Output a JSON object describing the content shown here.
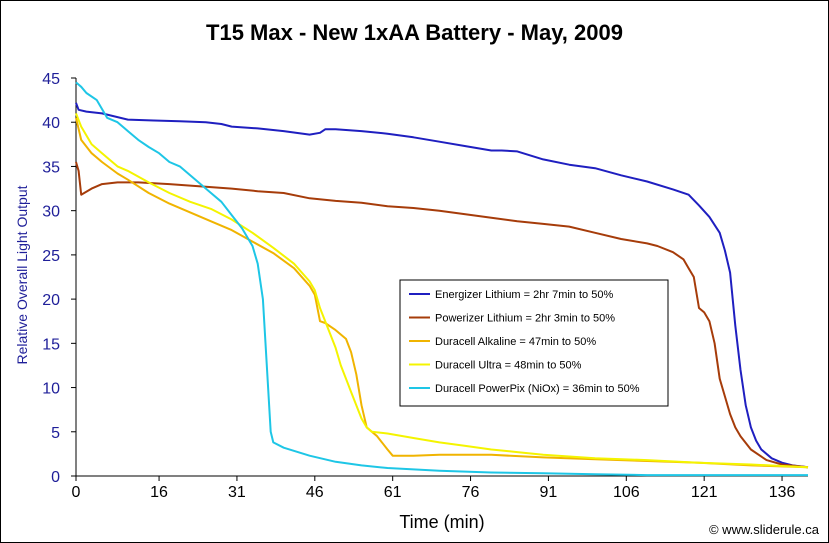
{
  "chart_data": {
    "type": "line",
    "title": "T15 Max - New 1xAA Battery - May, 2009",
    "xlabel": "Time (min)",
    "ylabel": "Relative Overall Light Output",
    "xlim": [
      0,
      141
    ],
    "ylim": [
      0,
      45
    ],
    "xticks": [
      0,
      16,
      31,
      46,
      61,
      76,
      91,
      106,
      121,
      136
    ],
    "yticks": [
      0,
      5,
      10,
      15,
      20,
      25,
      30,
      35,
      40,
      45
    ],
    "grid": false,
    "legend_position": "center-right",
    "credit": "© www.sliderule.ca",
    "series": [
      {
        "name": "Energizer Lithium = 2hr 7min to 50%",
        "color": "#1f1fc0",
        "points": [
          [
            0,
            42.2
          ],
          [
            0.5,
            41.4
          ],
          [
            2,
            41.2
          ],
          [
            5,
            41.0
          ],
          [
            10,
            40.3
          ],
          [
            15,
            40.2
          ],
          [
            20,
            40.1
          ],
          [
            25,
            40.0
          ],
          [
            28,
            39.8
          ],
          [
            30,
            39.5
          ],
          [
            35,
            39.3
          ],
          [
            40,
            39.0
          ],
          [
            45,
            38.6
          ],
          [
            47,
            38.8
          ],
          [
            48,
            39.2
          ],
          [
            50,
            39.2
          ],
          [
            55,
            39.0
          ],
          [
            60,
            38.7
          ],
          [
            65,
            38.3
          ],
          [
            70,
            37.8
          ],
          [
            75,
            37.3
          ],
          [
            80,
            36.8
          ],
          [
            82,
            36.8
          ],
          [
            85,
            36.7
          ],
          [
            90,
            35.8
          ],
          [
            95,
            35.2
          ],
          [
            100,
            34.8
          ],
          [
            105,
            34.0
          ],
          [
            110,
            33.3
          ],
          [
            115,
            32.4
          ],
          [
            118,
            31.8
          ],
          [
            120,
            30.6
          ],
          [
            122,
            29.3
          ],
          [
            124,
            27.5
          ],
          [
            125,
            25.5
          ],
          [
            126,
            23.0
          ],
          [
            127,
            17.0
          ],
          [
            128,
            12.0
          ],
          [
            129,
            8.0
          ],
          [
            130,
            5.5
          ],
          [
            131,
            4.0
          ],
          [
            132,
            3.0
          ],
          [
            134,
            2.0
          ],
          [
            136,
            1.5
          ],
          [
            138,
            1.2
          ],
          [
            141,
            1.0
          ]
        ]
      },
      {
        "name": "Powerizer Lithium = 2hr 3min to 50%",
        "color": "#a63c0a",
        "points": [
          [
            0,
            35.5
          ],
          [
            0.5,
            34.5
          ],
          [
            1,
            31.8
          ],
          [
            3,
            32.5
          ],
          [
            5,
            33.0
          ],
          [
            8,
            33.2
          ],
          [
            12,
            33.2
          ],
          [
            18,
            33.0
          ],
          [
            25,
            32.7
          ],
          [
            30,
            32.5
          ],
          [
            35,
            32.2
          ],
          [
            40,
            32.0
          ],
          [
            45,
            31.4
          ],
          [
            50,
            31.1
          ],
          [
            55,
            30.9
          ],
          [
            60,
            30.5
          ],
          [
            65,
            30.3
          ],
          [
            70,
            30.0
          ],
          [
            75,
            29.6
          ],
          [
            80,
            29.2
          ],
          [
            85,
            28.8
          ],
          [
            90,
            28.5
          ],
          [
            95,
            28.2
          ],
          [
            100,
            27.5
          ],
          [
            105,
            26.8
          ],
          [
            110,
            26.3
          ],
          [
            112,
            26.0
          ],
          [
            115,
            25.3
          ],
          [
            117,
            24.5
          ],
          [
            118,
            23.5
          ],
          [
            119,
            22.5
          ],
          [
            120,
            19.0
          ],
          [
            121,
            18.5
          ],
          [
            122,
            17.5
          ],
          [
            123,
            15.0
          ],
          [
            124,
            11.0
          ],
          [
            125,
            9.0
          ],
          [
            126,
            7.0
          ],
          [
            127,
            5.5
          ],
          [
            128,
            4.5
          ],
          [
            130,
            3.0
          ],
          [
            133,
            1.8
          ],
          [
            136,
            1.3
          ],
          [
            141,
            1.0
          ]
        ]
      },
      {
        "name": "Duracell Alkaline = 47min to 50%",
        "color": "#f0b400",
        "points": [
          [
            0,
            40.5
          ],
          [
            1,
            38.0
          ],
          [
            3,
            36.5
          ],
          [
            5,
            35.5
          ],
          [
            8,
            34.2
          ],
          [
            10,
            33.5
          ],
          [
            14,
            32.0
          ],
          [
            18,
            30.8
          ],
          [
            22,
            29.8
          ],
          [
            26,
            28.8
          ],
          [
            30,
            27.8
          ],
          [
            34,
            26.5
          ],
          [
            38,
            25.2
          ],
          [
            42,
            23.5
          ],
          [
            45,
            21.5
          ],
          [
            46,
            20.5
          ],
          [
            47,
            17.5
          ],
          [
            48,
            17.3
          ],
          [
            50,
            16.5
          ],
          [
            52,
            15.5
          ],
          [
            53,
            14.0
          ],
          [
            54,
            11.5
          ],
          [
            55,
            8.0
          ],
          [
            56,
            5.5
          ],
          [
            58,
            4.5
          ],
          [
            60,
            3.0
          ],
          [
            61,
            2.3
          ],
          [
            65,
            2.3
          ],
          [
            70,
            2.4
          ],
          [
            80,
            2.4
          ],
          [
            90,
            2.1
          ],
          [
            100,
            1.9
          ],
          [
            110,
            1.7
          ],
          [
            120,
            1.5
          ],
          [
            130,
            1.2
          ],
          [
            141,
            1.0
          ]
        ]
      },
      {
        "name": "Duracell Ultra = 48min to 50%",
        "color": "#f4f400",
        "points": [
          [
            0,
            41.0
          ],
          [
            1,
            39.5
          ],
          [
            3,
            37.5
          ],
          [
            5,
            36.5
          ],
          [
            8,
            35.0
          ],
          [
            10,
            34.5
          ],
          [
            14,
            33.2
          ],
          [
            18,
            32.0
          ],
          [
            22,
            31.0
          ],
          [
            26,
            30.2
          ],
          [
            30,
            29.0
          ],
          [
            34,
            27.5
          ],
          [
            38,
            25.8
          ],
          [
            42,
            24.0
          ],
          [
            45,
            22.0
          ],
          [
            46,
            21.0
          ],
          [
            47,
            19.0
          ],
          [
            48,
            17.5
          ],
          [
            49,
            16.0
          ],
          [
            50,
            14.5
          ],
          [
            51,
            12.5
          ],
          [
            52,
            11.0
          ],
          [
            53,
            9.5
          ],
          [
            54,
            8.0
          ],
          [
            55,
            6.5
          ],
          [
            56,
            5.5
          ],
          [
            57,
            5.0
          ],
          [
            60,
            4.8
          ],
          [
            65,
            4.3
          ],
          [
            70,
            3.8
          ],
          [
            75,
            3.4
          ],
          [
            80,
            3.0
          ],
          [
            85,
            2.7
          ],
          [
            90,
            2.4
          ],
          [
            95,
            2.2
          ],
          [
            100,
            2.0
          ],
          [
            110,
            1.8
          ],
          [
            120,
            1.5
          ],
          [
            130,
            1.3
          ],
          [
            141,
            1.0
          ]
        ]
      },
      {
        "name": "Duracell PowerPix (NiOx) = 36min to 50%",
        "color": "#1ec6e6",
        "points": [
          [
            0,
            44.5
          ],
          [
            1,
            44.0
          ],
          [
            2,
            43.3
          ],
          [
            4,
            42.5
          ],
          [
            5,
            41.5
          ],
          [
            6,
            40.5
          ],
          [
            8,
            40.0
          ],
          [
            10,
            39.0
          ],
          [
            12,
            38.0
          ],
          [
            14,
            37.2
          ],
          [
            16,
            36.5
          ],
          [
            18,
            35.5
          ],
          [
            20,
            35.0
          ],
          [
            22,
            34.0
          ],
          [
            24,
            33.0
          ],
          [
            26,
            32.0
          ],
          [
            28,
            31.0
          ],
          [
            30,
            29.5
          ],
          [
            32,
            28.0
          ],
          [
            34,
            26.0
          ],
          [
            35,
            24.0
          ],
          [
            36,
            20.0
          ],
          [
            36.5,
            15.0
          ],
          [
            37,
            10.0
          ],
          [
            37.5,
            5.0
          ],
          [
            38,
            3.8
          ],
          [
            40,
            3.2
          ],
          [
            45,
            2.3
          ],
          [
            50,
            1.6
          ],
          [
            55,
            1.2
          ],
          [
            60,
            0.9
          ],
          [
            70,
            0.6
          ],
          [
            80,
            0.4
          ],
          [
            90,
            0.3
          ],
          [
            100,
            0.2
          ],
          [
            110,
            0.1
          ],
          [
            120,
            0.1
          ],
          [
            141,
            0.1
          ]
        ]
      }
    ]
  }
}
